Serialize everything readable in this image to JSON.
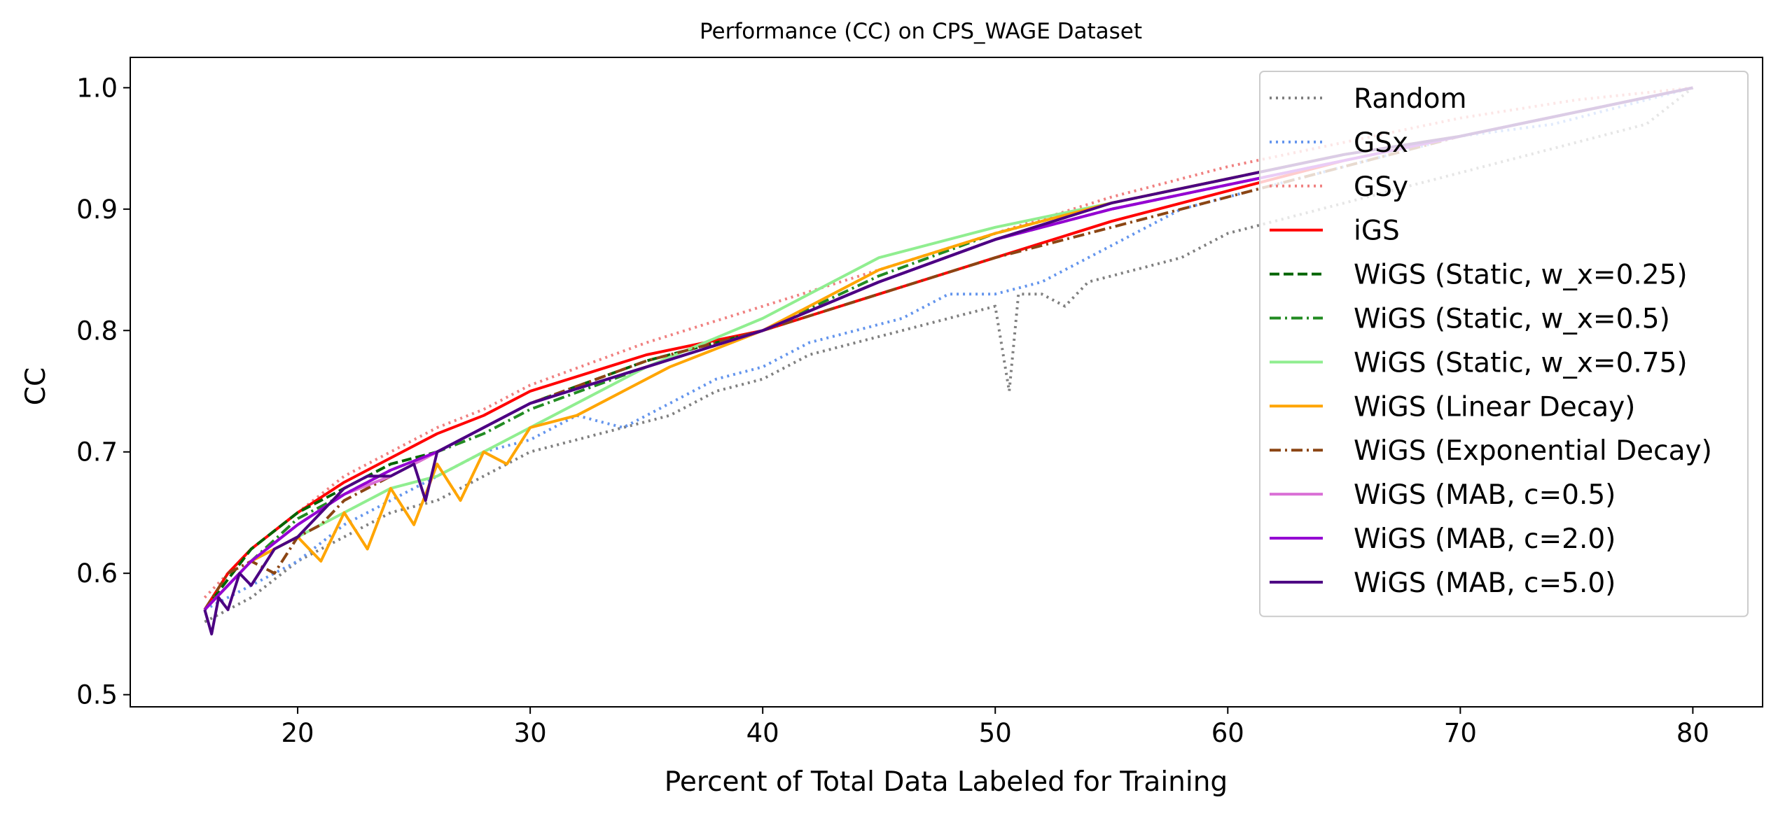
{
  "chart_data": {
    "type": "line",
    "title": "Performance (CC) on CPS_WAGE Dataset",
    "xlabel": "Percent of Total Data Labeled for Training",
    "ylabel": "CC",
    "xlim": [
      12.8,
      83.0
    ],
    "ylim": [
      0.49,
      1.025
    ],
    "xticks": [
      20,
      30,
      40,
      50,
      60,
      70,
      80
    ],
    "yticks": [
      0.5,
      0.6,
      0.7,
      0.8,
      0.9,
      1.0
    ],
    "xtick_labels": [
      "20",
      "30",
      "40",
      "50",
      "60",
      "70",
      "80"
    ],
    "ytick_labels": [
      "0.5",
      "0.6",
      "0.7",
      "0.8",
      "0.9",
      "1.0"
    ],
    "grid": false,
    "legend_position": "top-right",
    "series": [
      {
        "name": "Random",
        "color": "#808080",
        "style": "dotted",
        "x": [
          16,
          18,
          20,
          22,
          24,
          26,
          28,
          30,
          32,
          34,
          36,
          38,
          40,
          42,
          44,
          46,
          48,
          50,
          50.6,
          51,
          52,
          53,
          54,
          56,
          58,
          60,
          62,
          64,
          66,
          68,
          70,
          72,
          74,
          76,
          78,
          80
        ],
        "y": [
          0.56,
          0.58,
          0.61,
          0.63,
          0.65,
          0.66,
          0.68,
          0.7,
          0.71,
          0.72,
          0.73,
          0.75,
          0.76,
          0.78,
          0.79,
          0.8,
          0.81,
          0.82,
          0.75,
          0.83,
          0.83,
          0.82,
          0.84,
          0.85,
          0.86,
          0.88,
          0.89,
          0.9,
          0.91,
          0.92,
          0.93,
          0.94,
          0.95,
          0.96,
          0.97,
          1.0
        ]
      },
      {
        "name": "GSx",
        "color": "#6495ed",
        "style": "dotted",
        "x": [
          16,
          18,
          20,
          22,
          24,
          26,
          28,
          30,
          32,
          34,
          36,
          38,
          40,
          42,
          44,
          46,
          48,
          50,
          52,
          54,
          56,
          58,
          60,
          62,
          64,
          66,
          68,
          70,
          72,
          74,
          76,
          78,
          80
        ],
        "y": [
          0.57,
          0.59,
          0.61,
          0.64,
          0.66,
          0.68,
          0.7,
          0.71,
          0.73,
          0.72,
          0.74,
          0.76,
          0.77,
          0.79,
          0.8,
          0.81,
          0.83,
          0.83,
          0.84,
          0.86,
          0.88,
          0.9,
          0.91,
          0.92,
          0.93,
          0.94,
          0.95,
          0.96,
          0.965,
          0.97,
          0.98,
          0.99,
          1.0
        ]
      },
      {
        "name": "GSy",
        "color": "#f08080",
        "style": "dotted",
        "x": [
          16,
          18,
          20,
          22,
          24,
          26,
          28,
          30,
          35,
          40,
          45,
          50,
          55,
          60,
          65,
          70,
          75,
          80
        ],
        "y": [
          0.58,
          0.62,
          0.65,
          0.68,
          0.7,
          0.72,
          0.735,
          0.755,
          0.79,
          0.82,
          0.85,
          0.88,
          0.91,
          0.935,
          0.955,
          0.975,
          0.99,
          1.0
        ]
      },
      {
        "name": "iGS",
        "color": "#ff0000",
        "style": "solid",
        "x": [
          16,
          17,
          18,
          20,
          22,
          24,
          26,
          28,
          30,
          35,
          40,
          45,
          50,
          55,
          60,
          65,
          70,
          75,
          80
        ],
        "y": [
          0.57,
          0.6,
          0.62,
          0.65,
          0.675,
          0.695,
          0.715,
          0.73,
          0.75,
          0.78,
          0.8,
          0.83,
          0.86,
          0.89,
          0.915,
          0.94,
          0.96,
          0.98,
          1.0
        ]
      },
      {
        "name": "WiGS (Static, w_x=0.25)",
        "color": "#006400",
        "style": "dashed",
        "x": [
          16,
          18,
          20,
          22,
          24,
          26,
          28,
          30,
          35,
          40,
          45,
          50,
          55,
          60,
          65,
          70,
          75,
          80
        ],
        "y": [
          0.57,
          0.62,
          0.65,
          0.67,
          0.69,
          0.7,
          0.72,
          0.74,
          0.775,
          0.8,
          0.84,
          0.875,
          0.9,
          0.92,
          0.94,
          0.96,
          0.98,
          1.0
        ]
      },
      {
        "name": "WiGS (Static, w_x=0.5)",
        "color": "#228b22",
        "style": "dashdot",
        "x": [
          16,
          18,
          20,
          22,
          24,
          26,
          28,
          30,
          35,
          40,
          45,
          50,
          55,
          60,
          65,
          70,
          75,
          80
        ],
        "y": [
          0.57,
          0.61,
          0.645,
          0.665,
          0.685,
          0.7,
          0.715,
          0.735,
          0.77,
          0.8,
          0.845,
          0.88,
          0.905,
          0.925,
          0.945,
          0.96,
          0.98,
          1.0
        ]
      },
      {
        "name": "WiGS (Static, w_x=0.75)",
        "color": "#90ee90",
        "style": "solid",
        "x": [
          16,
          18,
          20,
          22,
          24,
          26,
          28,
          30,
          35,
          40,
          45,
          50,
          55,
          60,
          65,
          70,
          75,
          80
        ],
        "y": [
          0.57,
          0.61,
          0.63,
          0.65,
          0.67,
          0.68,
          0.7,
          0.72,
          0.77,
          0.81,
          0.86,
          0.885,
          0.905,
          0.925,
          0.945,
          0.96,
          0.98,
          1.0
        ]
      },
      {
        "name": "WiGS (Linear Decay)",
        "color": "#ffa500",
        "style": "solid",
        "x": [
          16,
          17,
          18,
          19,
          20,
          21,
          22,
          23,
          24,
          25,
          26,
          27,
          28,
          29,
          30,
          32,
          34,
          36,
          38,
          40,
          45,
          50,
          55,
          60,
          65,
          70,
          75,
          80
        ],
        "y": [
          0.57,
          0.59,
          0.61,
          0.62,
          0.63,
          0.61,
          0.65,
          0.62,
          0.67,
          0.64,
          0.69,
          0.66,
          0.7,
          0.69,
          0.72,
          0.73,
          0.75,
          0.77,
          0.785,
          0.8,
          0.85,
          0.88,
          0.905,
          0.925,
          0.945,
          0.96,
          0.98,
          1.0
        ]
      },
      {
        "name": "WiGS (Exponential Decay)",
        "color": "#8b4513",
        "style": "dashdot",
        "x": [
          16,
          17,
          18,
          19,
          20,
          21,
          22,
          24,
          26,
          28,
          30,
          35,
          40,
          45,
          50,
          55,
          60,
          65,
          70,
          75,
          80
        ],
        "y": [
          0.57,
          0.6,
          0.61,
          0.6,
          0.63,
          0.64,
          0.66,
          0.68,
          0.7,
          0.72,
          0.74,
          0.775,
          0.8,
          0.83,
          0.86,
          0.885,
          0.91,
          0.935,
          0.96,
          0.98,
          1.0
        ]
      },
      {
        "name": "WiGS (MAB, c=0.5)",
        "color": "#da70d6",
        "style": "solid",
        "x": [
          16,
          18,
          20,
          22,
          24,
          26,
          28,
          30,
          35,
          40,
          45,
          50,
          55,
          60,
          65,
          70,
          75,
          80
        ],
        "y": [
          0.57,
          0.61,
          0.64,
          0.665,
          0.68,
          0.7,
          0.72,
          0.74,
          0.77,
          0.8,
          0.84,
          0.875,
          0.9,
          0.92,
          0.94,
          0.96,
          0.98,
          1.0
        ]
      },
      {
        "name": "WiGS (MAB, c=2.0)",
        "color": "#9400d3",
        "style": "solid",
        "x": [
          16,
          18,
          20,
          22,
          24,
          26,
          28,
          30,
          35,
          40,
          45,
          50,
          55,
          60,
          65,
          70,
          75,
          80
        ],
        "y": [
          0.57,
          0.61,
          0.64,
          0.665,
          0.685,
          0.7,
          0.72,
          0.74,
          0.77,
          0.8,
          0.84,
          0.875,
          0.9,
          0.92,
          0.94,
          0.96,
          0.98,
          1.0
        ]
      },
      {
        "name": "WiGS (MAB, c=5.0)",
        "color": "#4b0082",
        "style": "solid",
        "x": [
          16,
          16.3,
          16.6,
          17,
          17.5,
          18,
          19,
          20,
          21,
          22,
          23,
          24,
          25,
          25.5,
          26,
          28,
          30,
          35,
          40,
          45,
          50,
          55,
          60,
          65,
          70,
          75,
          80
        ],
        "y": [
          0.57,
          0.55,
          0.58,
          0.57,
          0.6,
          0.59,
          0.62,
          0.63,
          0.65,
          0.67,
          0.68,
          0.68,
          0.69,
          0.66,
          0.7,
          0.72,
          0.74,
          0.77,
          0.8,
          0.84,
          0.875,
          0.905,
          0.925,
          0.945,
          0.96,
          0.98,
          1.0
        ]
      }
    ]
  }
}
